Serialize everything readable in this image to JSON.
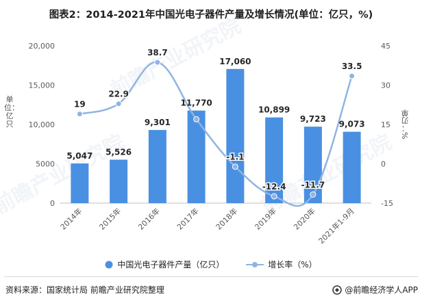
{
  "title": "图表2：2014-2021年中国光电子器件产量及增长情况(单位：亿只，%)",
  "chart_data": {
    "type": "bar+line",
    "categories": [
      "2014年",
      "2015年",
      "2016年",
      "2017年",
      "2018年",
      "2019年",
      "2020年",
      "2021年1-9月"
    ],
    "series": [
      {
        "name": "中国光电子器件产量（亿只）",
        "type": "bar",
        "axis": "left",
        "color": "#4a90e2",
        "values": [
          5047,
          5526,
          9301,
          11770,
          17060,
          10899,
          9723,
          9073
        ],
        "labels": [
          "5,047",
          "5,526",
          "9,301",
          "11,770",
          "17,060",
          "10,899",
          "9,723",
          "9,073"
        ]
      },
      {
        "name": "增长率（%）",
        "type": "line",
        "axis": "right",
        "color": "#8fb4e3",
        "values": [
          19,
          22.9,
          38.7,
          17,
          -1.1,
          -12.4,
          -11.7,
          33.5
        ],
        "labels": [
          "19",
          "22.9",
          "38.7",
          "",
          "-1.1",
          "-12.4",
          "-11.7",
          "33.5"
        ]
      }
    ],
    "ylabel_left": "单位：亿只",
    "ylabel_right": "%：刃单",
    "ylim_left": [
      0,
      20000
    ],
    "yticks_left": [
      "0",
      "5000",
      "10,000",
      "15,000",
      "20,000"
    ],
    "ylim_right": [
      -15,
      45
    ],
    "yticks_right": [
      "-15",
      "0",
      "15",
      "30",
      "45"
    ],
    "grid": false,
    "legend_position": "bottom"
  },
  "legend": {
    "bar": "中国光电子器件产量（亿只）",
    "line": "增长率（%）"
  },
  "watermark": "前瞻产业研究院",
  "footer": {
    "source": "资料来源：国家统计局 前瞻产业研究院整理",
    "brand": "@前瞻经济学人APP"
  }
}
